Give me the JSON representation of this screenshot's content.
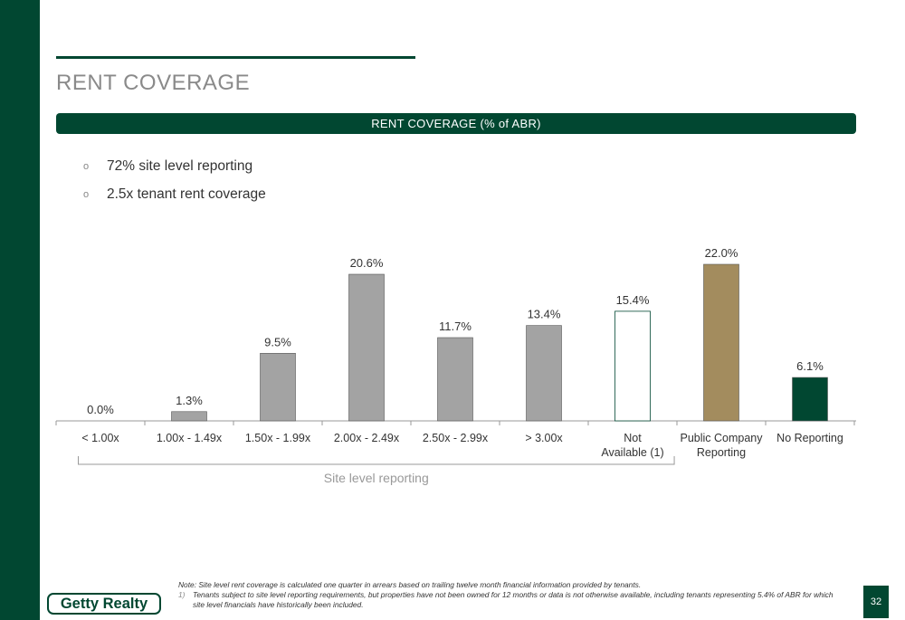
{
  "page": {
    "title": "RENT COVERAGE",
    "banner": "RENT COVERAGE (% of ABR)",
    "page_number": "32",
    "logo_text": "Getty Realty"
  },
  "bullets": [
    {
      "marker": "o",
      "text": "72% site level reporting"
    },
    {
      "marker": "o",
      "text": "2.5x tenant rent coverage"
    }
  ],
  "chart_data": {
    "type": "bar",
    "categories": [
      [
        "< 1.00x"
      ],
      [
        "1.00x - 1.49x"
      ],
      [
        "1.50x - 1.99x"
      ],
      [
        "2.00x - 2.49x"
      ],
      [
        "2.50x - 2.99x"
      ],
      [
        "> 3.00x"
      ],
      [
        "Not",
        "Available (1)"
      ],
      [
        "Public Company",
        "Reporting"
      ],
      [
        "No Reporting"
      ]
    ],
    "values": [
      0.0,
      1.3,
      9.5,
      20.6,
      11.7,
      13.4,
      15.4,
      22.0,
      6.1
    ],
    "labels": [
      "0.0%",
      "1.3%",
      "9.5%",
      "20.6%",
      "11.7%",
      "13.4%",
      "15.4%",
      "22.0%",
      "6.1%"
    ],
    "bar_styles": [
      "gray",
      "gray",
      "gray",
      "gray",
      "gray",
      "gray",
      "outline",
      "tan",
      "green"
    ],
    "ylim": [
      0,
      22.0
    ],
    "bracket_label": "Site level reporting",
    "bracket_span": [
      0,
      6
    ],
    "colors": {
      "gray": "#a3a3a3",
      "outline": "#ffffff",
      "tan": "#a38c5e",
      "green": "#014731",
      "outline_stroke": "#014731"
    }
  },
  "notes": {
    "note": "Note: Site level rent coverage is calculated one quarter in arrears based on trailing twelve month financial information provided by tenants.",
    "footnote_marker": "1)",
    "footnote": "Tenants subject to site level reporting requirements, but properties have not been owned for 12 months or data is not otherwise available, including tenants representing 5.4% of ABR for which site level financials have historically been included."
  }
}
